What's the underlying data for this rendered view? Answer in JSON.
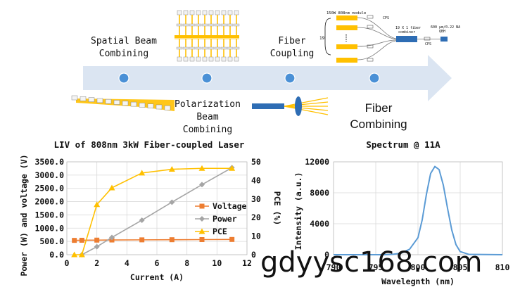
{
  "process": {
    "steps": [
      {
        "label_lines": [
          "Spatial Beam",
          "Combining"
        ]
      },
      {
        "label_lines": [
          "Polarization",
          "Beam",
          "Combining"
        ]
      },
      {
        "label_lines": [
          "Fiber",
          "Coupling"
        ]
      },
      {
        "label_lines": [
          "Fiber",
          "Combining"
        ]
      }
    ],
    "schematic": {
      "module_label": "150W 808nm module",
      "cps_label": "CPS",
      "combiner_label_lines": [
        "19 X 1 fiber",
        "combiner"
      ],
      "output_label_lines": [
        "600 μm/0.22 NA",
        "QBH"
      ],
      "cps_label_2": "CPS",
      "count_label": "19"
    },
    "colors": {
      "arrow": "#dbe5f2",
      "node": "#4a90d6",
      "laser": "#ffc000",
      "fiber": "#2e6db4"
    }
  },
  "watermark": "gdyysc168.com",
  "chart_data": [
    {
      "type": "line",
      "title": "LIV of 808nm 3kW Fiber-coupled Laser",
      "xlabel": "Current (A)",
      "ylabel": "Power (W) and voltage (V)",
      "y2label": "PCE (%)",
      "xlim": [
        0,
        12
      ],
      "ylim": [
        0,
        3500
      ],
      "y2lim": [
        0,
        50
      ],
      "xticks": [
        "0",
        "2",
        "4",
        "6",
        "8",
        "10",
        "12"
      ],
      "yticks": [
        "0.0",
        "500.0",
        "1000.0",
        "1500.0",
        "2000.0",
        "2500.0",
        "3000.0",
        "3500.0"
      ],
      "y2ticks": [
        "0",
        "10",
        "20",
        "30",
        "40",
        "50"
      ],
      "grid": true,
      "legend": "right",
      "series": [
        {
          "name": "Voltage",
          "axis": "left",
          "color": "#ed7d31",
          "marker": "square",
          "x": [
            0.5,
            1,
            2,
            3,
            5,
            7,
            9,
            11
          ],
          "y": [
            540,
            545,
            550,
            555,
            560,
            565,
            570,
            575
          ]
        },
        {
          "name": "Power",
          "axis": "left",
          "color": "#a5a5a5",
          "marker": "diamond",
          "x": [
            1,
            2,
            3,
            5,
            7,
            9,
            11
          ],
          "y": [
            0,
            300,
            650,
            1300,
            1980,
            2640,
            3280
          ]
        },
        {
          "name": "PCE",
          "axis": "right",
          "color": "#ffc000",
          "marker": "triangle",
          "x": [
            0.5,
            1,
            2,
            3,
            5,
            7,
            9,
            11
          ],
          "y": [
            0,
            0,
            27,
            36,
            44,
            46,
            46.5,
            46.5
          ]
        }
      ]
    },
    {
      "type": "line",
      "title": "Spectrum @ 11A",
      "xlabel": "Wavelegnth (nm)",
      "ylabel": "Intensity (a.u.)",
      "xlim": [
        790,
        810
      ],
      "ylim": [
        0,
        12000
      ],
      "xticks": [
        "790",
        "795",
        "800",
        "805",
        "810"
      ],
      "yticks": [
        "0",
        "4000",
        "8000",
        "12000"
      ],
      "grid": true,
      "series": [
        {
          "color": "#5b9bd5",
          "x": [
            790,
            796,
            797,
            798,
            799,
            800,
            800.5,
            801,
            801.5,
            802,
            802.5,
            803,
            803.5,
            804,
            804.5,
            805,
            806,
            810
          ],
          "y": [
            0,
            0,
            50,
            200,
            700,
            2200,
            4500,
            7800,
            10500,
            11400,
            11000,
            9000,
            6000,
            3200,
            1300,
            400,
            50,
            0
          ]
        }
      ]
    }
  ]
}
